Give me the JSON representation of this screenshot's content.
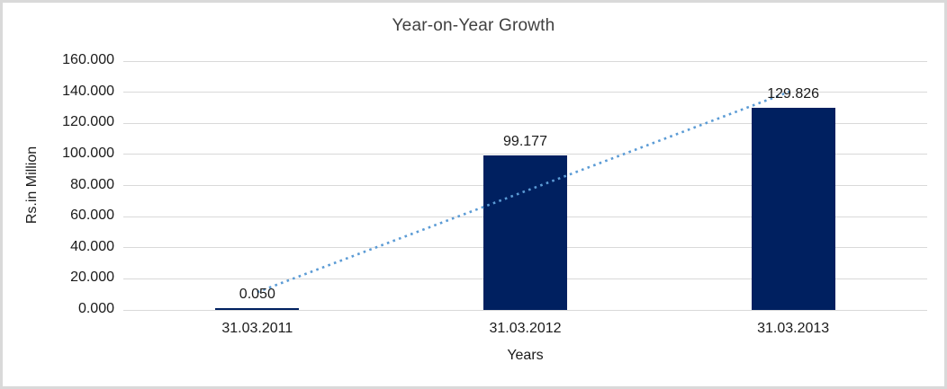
{
  "chart_data": {
    "type": "bar",
    "title": "Year-on-Year Growth",
    "categories": [
      "31.03.2011",
      "31.03.2012",
      "31.03.2013"
    ],
    "values": [
      0.05,
      99.177,
      129.826
    ],
    "data_labels": [
      "0.050",
      "99.177",
      "129.826"
    ],
    "xlabel": "Years",
    "ylabel": "Rs.in Million",
    "ylim": [
      0,
      160
    ],
    "ytick_step": 20,
    "ytick_labels": [
      "0.000",
      "20.000",
      "40.000",
      "60.000",
      "80.000",
      "100.000",
      "120.000",
      "140.000",
      "160.000"
    ],
    "grid": true,
    "legend": "none",
    "trendline": {
      "type": "linear",
      "style": "dotted",
      "fitted_endpoints": [
        11.463,
        141.239
      ]
    },
    "colors": {
      "bar": "#002060",
      "trendline": "#5b9bd5",
      "gridline": "#d9d9d9",
      "border": "#d9d9d9",
      "title_text": "#404040",
      "axis_text": "#1a1a1a",
      "background": "#ffffff"
    }
  }
}
